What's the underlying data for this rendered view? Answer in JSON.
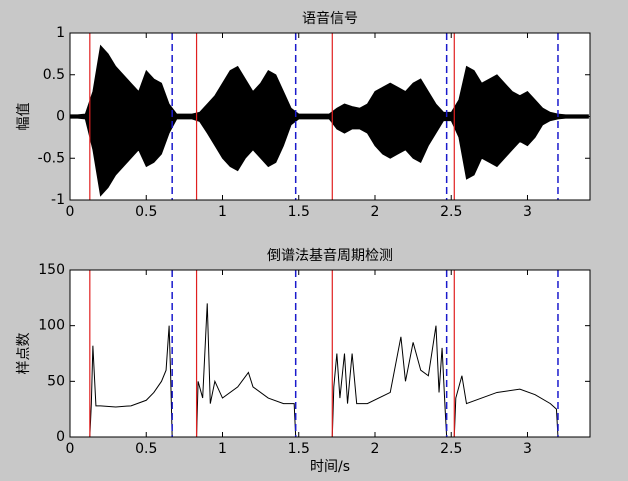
{
  "chart_data": [
    {
      "type": "band",
      "title": "语音信号",
      "ylabel": "幅值",
      "color": "#000000",
      "x": [
        0,
        0.05,
        0.1,
        0.15,
        0.2,
        0.25,
        0.3,
        0.35,
        0.4,
        0.45,
        0.5,
        0.55,
        0.6,
        0.65,
        0.7,
        0.75,
        0.8,
        0.85,
        0.9,
        0.95,
        1.0,
        1.05,
        1.1,
        1.15,
        1.2,
        1.25,
        1.3,
        1.35,
        1.4,
        1.45,
        1.5,
        1.55,
        1.6,
        1.65,
        1.7,
        1.75,
        1.8,
        1.85,
        1.9,
        1.95,
        2.0,
        2.05,
        2.1,
        2.15,
        2.2,
        2.25,
        2.3,
        2.35,
        2.4,
        2.45,
        2.5,
        2.55,
        2.6,
        2.65,
        2.7,
        2.75,
        2.8,
        2.85,
        2.9,
        2.95,
        3.0,
        3.05,
        3.1,
        3.15,
        3.2,
        3.25,
        3.3,
        3.35,
        3.4
      ],
      "upper": [
        0.02,
        0.02,
        0.03,
        0.3,
        0.85,
        0.75,
        0.6,
        0.5,
        0.4,
        0.3,
        0.55,
        0.45,
        0.4,
        0.15,
        0.03,
        0.03,
        0.03,
        0.05,
        0.15,
        0.25,
        0.4,
        0.55,
        0.6,
        0.45,
        0.3,
        0.4,
        0.55,
        0.5,
        0.3,
        0.1,
        0.03,
        0.03,
        0.03,
        0.03,
        0.03,
        0.1,
        0.15,
        0.12,
        0.1,
        0.15,
        0.3,
        0.35,
        0.4,
        0.35,
        0.3,
        0.4,
        0.45,
        0.3,
        0.15,
        0.05,
        0.05,
        0.2,
        0.6,
        0.55,
        0.4,
        0.45,
        0.5,
        0.4,
        0.3,
        0.25,
        0.3,
        0.2,
        0.1,
        0.05,
        0.03,
        0.02,
        0.02,
        0.02,
        0.02
      ],
      "lower": [
        -0.02,
        -0.02,
        -0.03,
        -0.4,
        -0.95,
        -0.85,
        -0.7,
        -0.6,
        -0.5,
        -0.4,
        -0.6,
        -0.55,
        -0.45,
        -0.2,
        -0.03,
        -0.03,
        -0.03,
        -0.06,
        -0.2,
        -0.35,
        -0.5,
        -0.6,
        -0.65,
        -0.5,
        -0.4,
        -0.5,
        -0.6,
        -0.55,
        -0.35,
        -0.1,
        -0.03,
        -0.03,
        -0.03,
        -0.03,
        -0.03,
        -0.15,
        -0.2,
        -0.15,
        -0.15,
        -0.2,
        -0.35,
        -0.45,
        -0.5,
        -0.45,
        -0.4,
        -0.5,
        -0.55,
        -0.35,
        -0.2,
        -0.05,
        -0.05,
        -0.25,
        -0.75,
        -0.7,
        -0.5,
        -0.55,
        -0.6,
        -0.5,
        -0.4,
        -0.3,
        -0.35,
        -0.25,
        -0.1,
        -0.05,
        -0.03,
        -0.02,
        -0.02,
        -0.02,
        -0.02
      ],
      "segment_starts": [
        0.13,
        0.83,
        1.72,
        2.52
      ],
      "segment_ends": [
        0.67,
        1.48,
        2.47,
        3.2
      ],
      "start_color": "#e02020",
      "end_color": "#1a1acc",
      "xlim": [
        0,
        3.41
      ],
      "xticks": [
        0,
        0.5,
        1,
        1.5,
        2,
        2.5,
        3
      ],
      "ylim": [
        -1,
        1
      ],
      "yticks": [
        -1,
        -0.5,
        0,
        0.5,
        1
      ]
    },
    {
      "type": "line",
      "title": "倒谱法基音周期检测",
      "ylabel": "样点数",
      "xlabel": "时间/s",
      "color": "#000000",
      "x": [
        0.13,
        0.14,
        0.15,
        0.17,
        0.2,
        0.3,
        0.4,
        0.5,
        0.55,
        0.6,
        0.63,
        0.65,
        0.66,
        0.67,
        0.75,
        0.83,
        0.84,
        0.87,
        0.9,
        0.92,
        0.95,
        1.0,
        1.1,
        1.17,
        1.2,
        1.3,
        1.4,
        1.47,
        1.48,
        1.6,
        1.72,
        1.73,
        1.75,
        1.77,
        1.8,
        1.82,
        1.85,
        1.88,
        1.95,
        2.1,
        2.17,
        2.2,
        2.25,
        2.3,
        2.35,
        2.4,
        2.42,
        2.44,
        2.46,
        2.47,
        2.5,
        2.52,
        2.53,
        2.57,
        2.6,
        2.8,
        2.95,
        3.05,
        3.15,
        3.19,
        3.2
      ],
      "values": [
        0,
        30,
        82,
        28,
        28,
        27,
        28,
        33,
        40,
        50,
        60,
        100,
        55,
        0,
        null,
        0,
        50,
        35,
        120,
        30,
        50,
        35,
        45,
        58,
        45,
        35,
        30,
        30,
        0,
        null,
        0,
        45,
        75,
        35,
        75,
        30,
        75,
        30,
        30,
        40,
        90,
        50,
        85,
        60,
        55,
        100,
        40,
        80,
        25,
        0,
        null,
        0,
        35,
        55,
        30,
        40,
        43,
        38,
        30,
        25,
        0
      ],
      "segment_starts": [
        0.13,
        0.83,
        1.72,
        2.52
      ],
      "segment_ends": [
        0.67,
        1.48,
        2.47,
        3.2
      ],
      "start_color": "#e02020",
      "end_color": "#1a1acc",
      "xlim": [
        0,
        3.41
      ],
      "xticks": [
        0,
        0.5,
        1,
        1.5,
        2,
        2.5,
        3
      ],
      "ylim": [
        0,
        150
      ],
      "yticks": [
        0,
        50,
        100,
        150
      ]
    }
  ]
}
